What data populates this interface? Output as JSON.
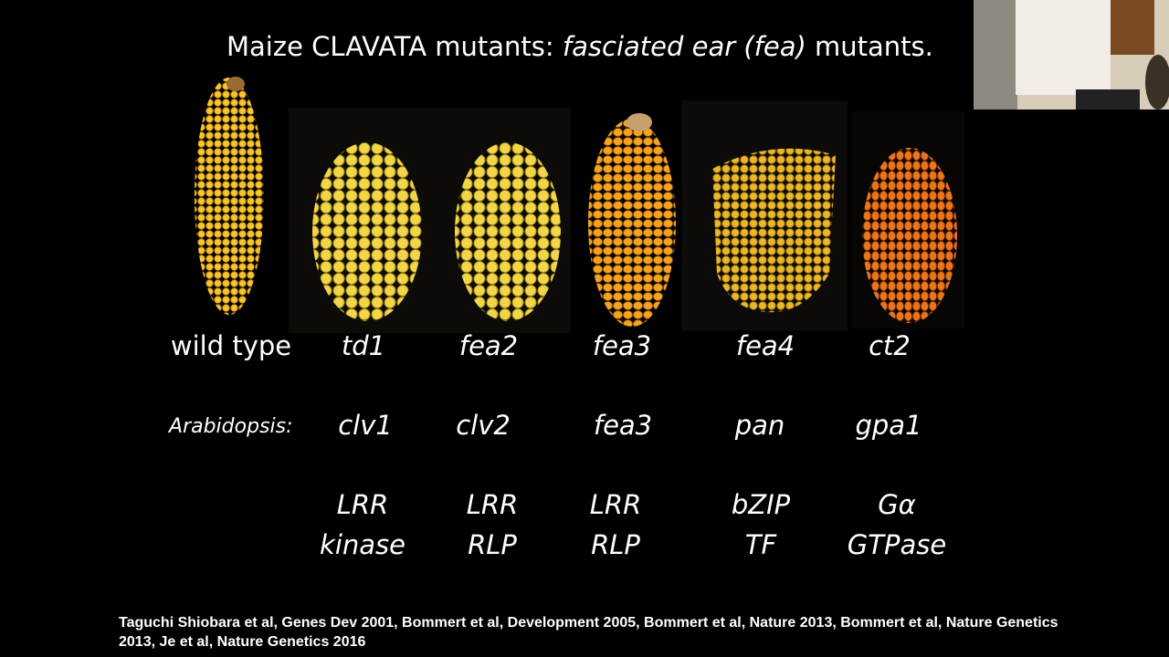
{
  "slide": {
    "title": {
      "start": "Maize CLAVATA mutants:",
      "italic": "fasciated ear (fea)",
      "end": "mutants."
    },
    "maize_labels": [
      "wild type",
      "td1",
      "fea2",
      "fea3",
      "fea4",
      "ct2"
    ],
    "arabidopsis": {
      "label": "Arabidopsis:",
      "genes": [
        "clv1",
        "clv2",
        "fea3",
        "pan",
        "gpa1"
      ]
    },
    "proteins": [
      [
        "LRR",
        "kinase"
      ],
      [
        "LRR",
        "RLP"
      ],
      [
        "LRR",
        "RLP"
      ],
      [
        "bZIP",
        "TF"
      ],
      [
        "Gα",
        "GTPase"
      ]
    ],
    "citation": "Taguchi Shiobara et al, Genes Dev 2001, Bommert et al, Development 2005, Bommert et al, Nature 2013, Bommert et al, Nature Genetics 2013, Je et al, Nature Genetics 2016"
  }
}
